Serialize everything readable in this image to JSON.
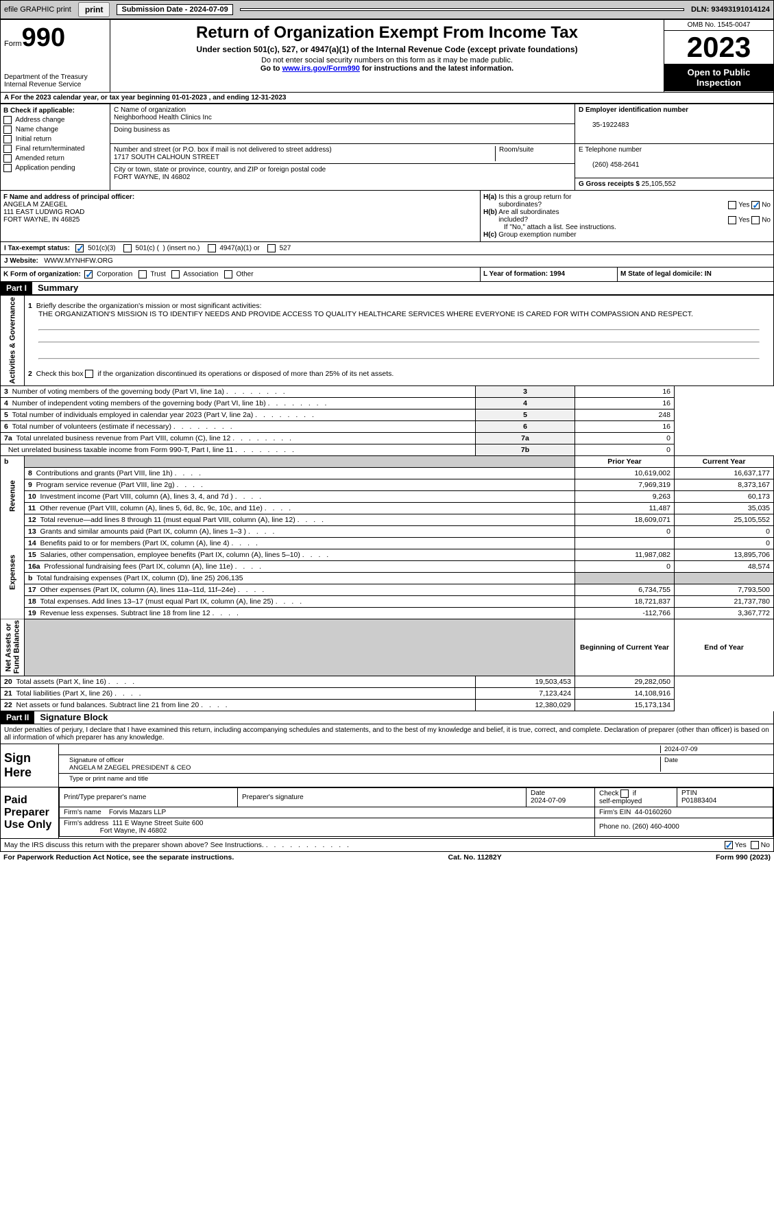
{
  "top_bar": {
    "efile": "efile GRAPHIC print",
    "submission": "Submission Date - 2024-07-09",
    "dln": "DLN: 93493191014124"
  },
  "header": {
    "form_label": "Form",
    "form_num": "990",
    "dept": "Department of the Treasury\nInternal Revenue Service",
    "title": "Return of Organization Exempt From Income Tax",
    "sub1": "Under section 501(c), 527, or 4947(a)(1) of the Internal Revenue Code (except private foundations)",
    "sub2": "Do not enter social security numbers on this form as it may be made public.",
    "sub3": "Go to www.irs.gov/Form990 for instructions and the latest information.",
    "link": "www.irs.gov/Form990",
    "omb": "OMB No. 1545-0047",
    "year": "2023",
    "open": "Open to Public Inspection"
  },
  "line_a": "A For the 2023 calendar year, or tax year beginning 01-01-2023   , and ending 12-31-2023",
  "box_b": {
    "label": "B Check if applicable:",
    "opts": [
      "Address change",
      "Name change",
      "Initial return",
      "Final return/terminated",
      "Amended return",
      "Application pending"
    ]
  },
  "box_c": {
    "name_label": "C Name of organization",
    "name": "Neighborhood Health Clinics Inc",
    "dba_label": "Doing business as",
    "street_label": "Number and street (or P.O. box if mail is not delivered to street address)",
    "street": "1717 SOUTH CALHOUN STREET",
    "room_label": "Room/suite",
    "city_label": "City or town, state or province, country, and ZIP or foreign postal code",
    "city": "FORT WAYNE, IN  46802"
  },
  "box_d": {
    "ein_label": "D Employer identification number",
    "ein": "35-1922483",
    "tel_label": "E Telephone number",
    "tel": "(260) 458-2641",
    "gross_label": "G Gross receipts $",
    "gross": "25,105,552"
  },
  "box_f": {
    "label": "F  Name and address of principal officer:",
    "name": "ANGELA M ZAEGEL",
    "addr1": "111 EAST LUDWIG ROAD",
    "addr2": "FORT WAYNE, IN  46825"
  },
  "box_h": {
    "ha": "H(a)  Is this a group return for subordinates?",
    "hb": "H(b)  Are all subordinates included?",
    "hb_note": "If \"No,\" attach a list. See instructions.",
    "hc": "H(c)  Group exemption number"
  },
  "tax_status": "I   Tax-exempt status:",
  "status_opts": [
    "501(c)(3)",
    "501(c) (  ) (insert no.)",
    "4947(a)(1) or",
    "527"
  ],
  "website_label": "J   Website:",
  "website": "WWW.MYNHFW.ORG",
  "k_label": "K Form of organization:",
  "k_opts": [
    "Corporation",
    "Trust",
    "Association",
    "Other"
  ],
  "l_label": "L Year of formation: 1994",
  "m_label": "M State of legal domicile: IN",
  "part1": {
    "num": "Part I",
    "title": "Summary"
  },
  "summary": {
    "q1": "Briefly describe the organization's mission or most significant activities:",
    "q1_ans": "THE ORGANIZATION'S MISSION IS TO IDENTIFY NEEDS AND PROVIDE ACCESS TO QUALITY HEALTHCARE SERVICES WHERE EVERYONE IS CARED FOR WITH COMPASSION AND RESPECT.",
    "q2": "Check this box ▢ if the organization discontinued its operations or disposed of more than 25% of its net assets.",
    "rows_ag": [
      {
        "n": "3",
        "t": "Number of voting members of the governing body (Part VI, line 1a)",
        "box": "3",
        "v": "16"
      },
      {
        "n": "4",
        "t": "Number of independent voting members of the governing body (Part VI, line 1b)",
        "box": "4",
        "v": "16"
      },
      {
        "n": "5",
        "t": "Total number of individuals employed in calendar year 2023 (Part V, line 2a)",
        "box": "5",
        "v": "248"
      },
      {
        "n": "6",
        "t": "Total number of volunteers (estimate if necessary)",
        "box": "6",
        "v": "16"
      },
      {
        "n": "7a",
        "t": "Total unrelated business revenue from Part VIII, column (C), line 12",
        "box": "7a",
        "v": "0"
      },
      {
        "n": "",
        "t": "Net unrelated business taxable income from Form 990-T, Part I, line 11",
        "box": "7b",
        "v": "0"
      }
    ],
    "py_hdr": "Prior Year",
    "cy_hdr": "Current Year",
    "rows_rev": [
      {
        "n": "8",
        "t": "Contributions and grants (Part VIII, line 1h)",
        "py": "10,619,002",
        "cy": "16,637,177"
      },
      {
        "n": "9",
        "t": "Program service revenue (Part VIII, line 2g)",
        "py": "7,969,319",
        "cy": "8,373,167"
      },
      {
        "n": "10",
        "t": "Investment income (Part VIII, column (A), lines 3, 4, and 7d )",
        "py": "9,263",
        "cy": "60,173"
      },
      {
        "n": "11",
        "t": "Other revenue (Part VIII, column (A), lines 5, 6d, 8c, 9c, 10c, and 11e)",
        "py": "11,487",
        "cy": "35,035"
      },
      {
        "n": "12",
        "t": "Total revenue—add lines 8 through 11 (must equal Part VIII, column (A), line 12)",
        "py": "18,609,071",
        "cy": "25,105,552"
      }
    ],
    "rows_exp": [
      {
        "n": "13",
        "t": "Grants and similar amounts paid (Part IX, column (A), lines 1–3 )",
        "py": "0",
        "cy": "0"
      },
      {
        "n": "14",
        "t": "Benefits paid to or for members (Part IX, column (A), line 4)",
        "py": "",
        "cy": "0"
      },
      {
        "n": "15",
        "t": "Salaries, other compensation, employee benefits (Part IX, column (A), lines 5–10)",
        "py": "11,987,082",
        "cy": "13,895,706"
      },
      {
        "n": "16a",
        "t": "Professional fundraising fees (Part IX, column (A), line 11e)",
        "py": "0",
        "cy": "48,574"
      },
      {
        "n": "b",
        "t": "Total fundraising expenses (Part IX, column (D), line 25) 206,135",
        "py": "",
        "cy": "",
        "shade": true
      },
      {
        "n": "17",
        "t": "Other expenses (Part IX, column (A), lines 11a–11d, 11f–24e)",
        "py": "6,734,755",
        "cy": "7,793,500"
      },
      {
        "n": "18",
        "t": "Total expenses. Add lines 13–17 (must equal Part IX, column (A), line 25)",
        "py": "18,721,837",
        "cy": "21,737,780"
      },
      {
        "n": "19",
        "t": "Revenue less expenses. Subtract line 18 from line 12",
        "py": "-112,766",
        "cy": "3,367,772"
      }
    ],
    "bcy_hdr": "Beginning of Current Year",
    "eoy_hdr": "End of Year",
    "rows_na": [
      {
        "n": "20",
        "t": "Total assets (Part X, line 16)",
        "py": "19,503,453",
        "cy": "29,282,050"
      },
      {
        "n": "21",
        "t": "Total liabilities (Part X, line 26)",
        "py": "7,123,424",
        "cy": "14,108,916"
      },
      {
        "n": "22",
        "t": "Net assets or fund balances. Subtract line 21 from line 20",
        "py": "12,380,029",
        "cy": "15,173,134"
      }
    ],
    "side_labels": [
      "Activities & Governance",
      "Revenue",
      "Expenses",
      "Net Assets or\nFund Balances"
    ]
  },
  "part2": {
    "num": "Part II",
    "title": "Signature Block"
  },
  "perjury": "Under penalties of perjury, I declare that I have examined this return, including accompanying schedules and statements, and to the best of my knowledge and belief, it is true, correct, and complete. Declaration of preparer (other than officer) is based on all information of which preparer has any knowledge.",
  "sign": {
    "label": "Sign Here",
    "date": "2024-07-09",
    "sig_label": "Signature of officer",
    "name": "ANGELA M ZAEGEL  PRESIDENT & CEO",
    "typed_label": "Type or print name and title",
    "date_label": "Date"
  },
  "paid": {
    "label": "Paid Preparer Use Only",
    "prep_name_label": "Print/Type preparer's name",
    "prep_sig_label": "Preparer's signature",
    "date_label": "Date",
    "date": "2024-07-09",
    "check_label": "Check ▢ if self-employed",
    "ptin_label": "PTIN",
    "ptin": "P01883404",
    "firm_name_label": "Firm's name",
    "firm_name": "Forvis Mazars LLP",
    "firm_ein_label": "Firm's EIN",
    "firm_ein": "44-0160260",
    "firm_addr_label": "Firm's address",
    "firm_addr": "111 E Wayne Street Suite 600\nFort Wayne, IN  46802",
    "phone_label": "Phone no.",
    "phone": "(260) 460-4000"
  },
  "discuss": "May the IRS discuss this return with the preparer shown above? See Instructions.",
  "footer": {
    "pra": "For Paperwork Reduction Act Notice, see the separate instructions.",
    "cat": "Cat. No. 11282Y",
    "form": "Form 990 (2023)"
  }
}
